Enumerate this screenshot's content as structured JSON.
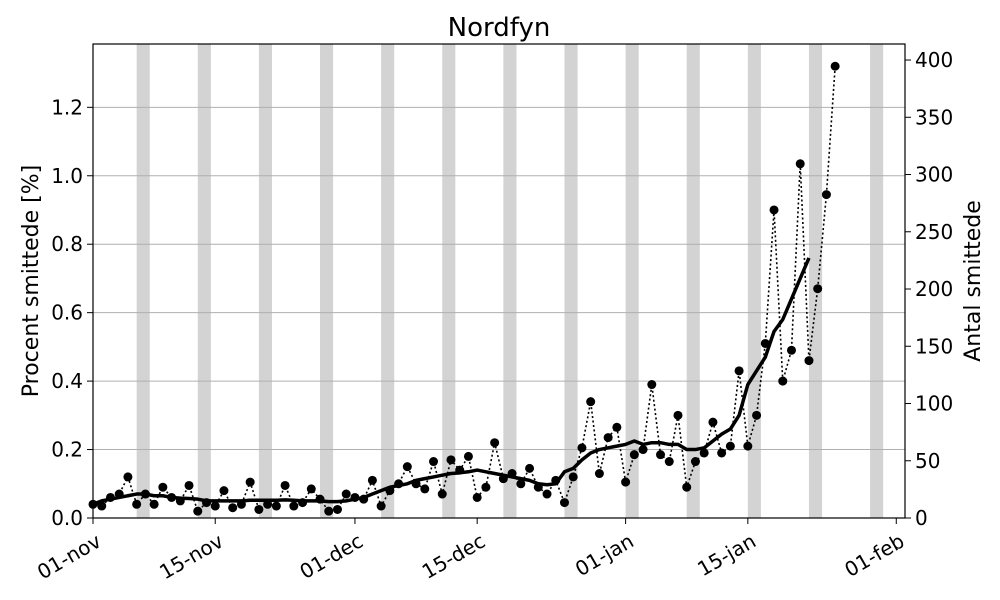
{
  "chart_data": {
    "type": "line",
    "title": "Nordfyn",
    "ylabel_left": "Procent smittede [%]",
    "ylabel_right": "Antal smittede",
    "xlim": [
      "2021-11-01",
      "2022-02-02"
    ],
    "ylim_left": [
      0,
      1.385
    ],
    "ylim_right": [
      0,
      414
    ],
    "x_ticks": [
      {
        "date": "2021-11-01",
        "label": "01-nov"
      },
      {
        "date": "2021-11-15",
        "label": "15-nov"
      },
      {
        "date": "2021-12-01",
        "label": "01-dec"
      },
      {
        "date": "2021-12-15",
        "label": "15-dec"
      },
      {
        "date": "2022-01-01",
        "label": "01-jan"
      },
      {
        "date": "2022-01-15",
        "label": "15-jan"
      },
      {
        "date": "2022-02-01",
        "label": "01-feb"
      }
    ],
    "y_ticks_left": [
      "0.0",
      "0.2",
      "0.4",
      "0.6",
      "0.8",
      "1.0",
      "1.2"
    ],
    "y_ticks_right": [
      "0",
      "50",
      "100",
      "150",
      "200",
      "250",
      "300",
      "350",
      "400"
    ],
    "grid": "horizontal",
    "colors": {
      "line": "#000000",
      "shade": "#d3d3d3",
      "grid": "#b0b0b0"
    },
    "weekend_shading_start": [
      "2021-11-06",
      "2021-11-13",
      "2021-11-20",
      "2021-11-27",
      "2021-12-04",
      "2021-12-11",
      "2021-12-18",
      "2021-12-25",
      "2022-01-01",
      "2022-01-08",
      "2022-01-15",
      "2022-01-22",
      "2022-01-29"
    ],
    "series": [
      {
        "style": "dotted-markers",
        "start_date": "2021-11-01",
        "values": [
          0.04,
          0.035,
          0.06,
          0.07,
          0.12,
          0.04,
          0.07,
          0.04,
          0.09,
          0.06,
          0.05,
          0.095,
          0.02,
          0.045,
          0.035,
          0.08,
          0.03,
          0.04,
          0.105,
          0.025,
          0.04,
          0.035,
          0.095,
          0.035,
          0.045,
          0.085,
          0.055,
          0.02,
          0.025,
          0.07,
          0.06,
          0.055,
          0.11,
          0.035,
          0.08,
          0.1,
          0.15,
          0.1,
          0.085,
          0.165,
          0.07,
          0.17,
          0.14,
          0.18,
          0.06,
          0.09,
          0.22,
          0.115,
          0.13,
          0.1,
          0.145,
          0.09,
          0.07,
          0.11,
          0.045,
          0.12,
          0.205,
          0.34,
          0.13,
          0.235,
          0.265,
          0.105,
          0.185,
          0.2,
          0.39,
          0.185,
          0.165,
          0.3,
          0.09,
          0.165,
          0.19,
          0.28,
          0.19,
          0.21,
          0.43,
          0.21,
          0.3,
          0.51,
          0.9,
          0.4,
          0.49,
          1.035,
          0.46,
          0.67,
          0.945,
          1.32
        ]
      },
      {
        "style": "solid-smoothed",
        "start_date": "2021-11-01",
        "values": [
          0.04,
          0.05,
          0.055,
          0.06,
          0.065,
          0.07,
          0.07,
          0.065,
          0.065,
          0.06,
          0.058,
          0.057,
          0.055,
          0.05,
          0.05,
          0.05,
          0.05,
          0.05,
          0.052,
          0.052,
          0.052,
          0.052,
          0.053,
          0.052,
          0.05,
          0.05,
          0.05,
          0.048,
          0.048,
          0.05,
          0.055,
          0.06,
          0.07,
          0.08,
          0.09,
          0.095,
          0.1,
          0.11,
          0.115,
          0.12,
          0.125,
          0.13,
          0.132,
          0.135,
          0.14,
          0.135,
          0.13,
          0.125,
          0.12,
          0.115,
          0.11,
          0.1,
          0.097,
          0.1,
          0.135,
          0.145,
          0.17,
          0.19,
          0.2,
          0.205,
          0.21,
          0.215,
          0.225,
          0.215,
          0.22,
          0.22,
          0.215,
          0.215,
          0.2,
          0.2,
          0.205,
          0.225,
          0.245,
          0.26,
          0.3,
          0.39,
          0.43,
          0.47,
          0.545,
          0.58,
          0.64,
          0.7,
          0.76
        ]
      }
    ]
  }
}
